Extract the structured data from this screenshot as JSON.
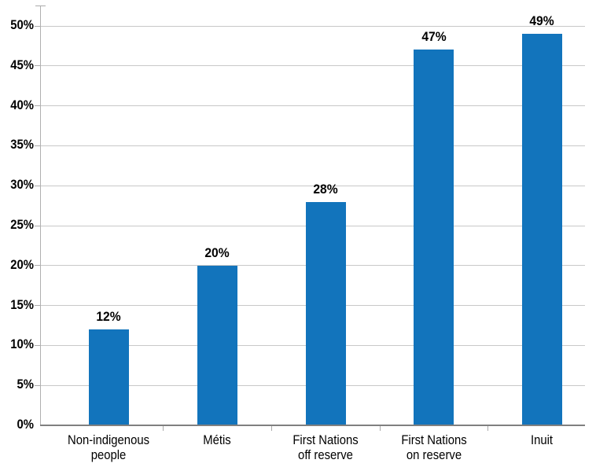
{
  "chart_data": {
    "type": "bar",
    "title": "",
    "xlabel": "",
    "ylabel": "",
    "categories": [
      [
        "Non-indigenous",
        "people"
      ],
      [
        "Métis"
      ],
      [
        "First Nations",
        "off reserve"
      ],
      [
        "First Nations",
        "on reserve"
      ],
      [
        "Inuit"
      ]
    ],
    "values": [
      12,
      20,
      28,
      47,
      49
    ],
    "value_labels": [
      "12%",
      "20%",
      "28%",
      "47%",
      "49%"
    ],
    "ylim": [
      0,
      50
    ],
    "ytick_step": 5,
    "ytick_labels": [
      "0%",
      "5%",
      "10%",
      "15%",
      "20%",
      "25%",
      "30%",
      "35%",
      "40%",
      "45%",
      "50%"
    ],
    "grid": "horizontal",
    "legend_position": "none",
    "colors": {
      "bar": "#1274BC",
      "gridline": "#c8c8c8",
      "axis": "#b0b0b0",
      "baseline": "#808080",
      "tick": "#aaaaaa",
      "label": "#000000"
    }
  }
}
